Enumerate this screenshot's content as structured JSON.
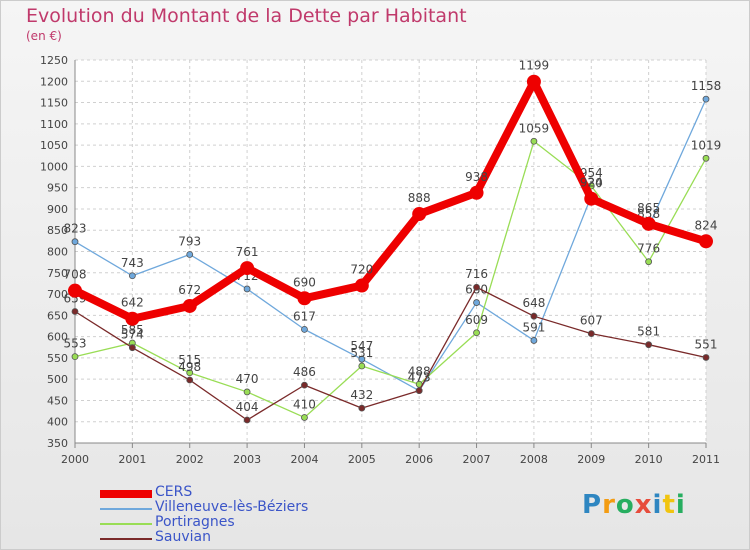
{
  "title": "Evolution du Montant de la Dette par Habitant",
  "unit": "(en €)",
  "logo": "Proxiti",
  "colors": {
    "title": "#c0396b",
    "axis_text": "#444444",
    "grid": "#d0d0d0",
    "legend_text": "#3b55c8"
  },
  "chart_data": {
    "type": "line",
    "x": [
      "2000",
      "2001",
      "2002",
      "2003",
      "2004",
      "2005",
      "2006",
      "2007",
      "2008",
      "2009",
      "2010",
      "2011"
    ],
    "ylim": [
      350,
      1250
    ],
    "yticks": [
      350,
      400,
      450,
      500,
      550,
      600,
      650,
      700,
      750,
      800,
      850,
      900,
      950,
      1000,
      1050,
      1100,
      1150,
      1200,
      1250
    ],
    "grid": true,
    "legend_position": "bottom-left",
    "series": [
      {
        "name": "CERS",
        "color": "#ee0000",
        "width": 8,
        "marker": 7,
        "values": [
          708,
          642,
          672,
          761,
          690,
          720,
          888,
          938,
          1199,
          924,
          865,
          824
        ]
      },
      {
        "name": "Villeneuve-lès-Béziers",
        "color": "#6fa8dc",
        "width": 1.3,
        "marker": 3,
        "values": [
          823,
          743,
          793,
          712,
          617,
          547,
          473,
          680,
          591,
          930,
          858,
          1158
        ]
      },
      {
        "name": "Portiragnes",
        "color": "#99dd55",
        "width": 1.3,
        "marker": 3,
        "values": [
          553,
          585,
          515,
          470,
          410,
          531,
          488,
          609,
          1059,
          954,
          776,
          1019
        ]
      },
      {
        "name": "Sauvian",
        "color": "#7a2a2a",
        "width": 1.3,
        "marker": 3,
        "values": [
          659,
          574,
          498,
          404,
          486,
          432,
          473,
          716,
          648,
          607,
          581,
          551
        ]
      }
    ]
  }
}
